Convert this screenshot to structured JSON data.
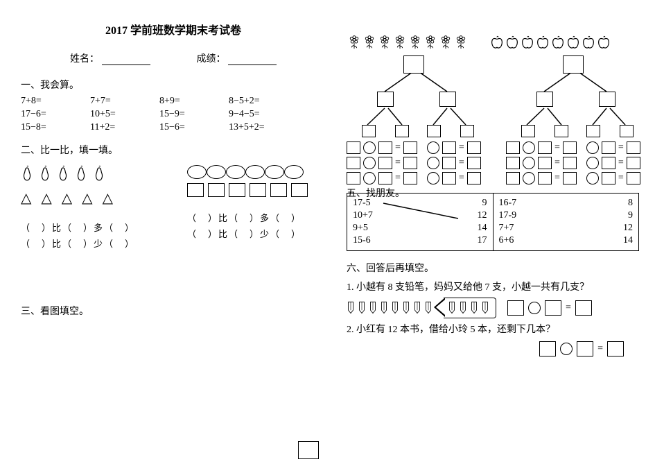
{
  "title": "2017 学前班数学期末考试卷",
  "form": {
    "name_label": "姓名：",
    "score_label": "成绩："
  },
  "sec1": {
    "heading": "一、我会算。",
    "rows": [
      [
        "7+8=",
        "7+7=",
        "8+9=",
        "8−5+2="
      ],
      [
        "17−6=",
        "10+5=",
        "15−9=",
        "9−4−5="
      ],
      [
        "15−8=",
        "11+2=",
        "15−6=",
        "13+5+2="
      ]
    ]
  },
  "sec2": {
    "heading": "二、比一比，填一填。",
    "more_template": "（　）比（　）多（　）",
    "less_template": "（　）比（　）少（　）"
  },
  "sec3": {
    "heading": "三、看图填空。"
  },
  "sec5": {
    "heading": "五、找朋友。",
    "left_pairs": [
      [
        "17-5",
        "9"
      ],
      [
        "10+7",
        "12"
      ],
      [
        "9+5",
        "14"
      ],
      [
        "15-6",
        "17"
      ]
    ],
    "right_pairs": [
      [
        "16-7",
        "8"
      ],
      [
        "17-9",
        "9"
      ],
      [
        "7+7",
        "12"
      ],
      [
        "6+6",
        "14"
      ]
    ]
  },
  "sec6": {
    "heading": "六、回答后再填空。",
    "q1": "1. 小越有 8 支铅笔，妈妈又给他 7 支，小越一共有几支？",
    "q2": "2. 小红有 12 本书，借给小玲 5 本，还剩下几本？"
  },
  "counts": {
    "flowers": 8,
    "apples": 8,
    "pears": 5,
    "triangles": 5,
    "ovals": 6,
    "squares": 6,
    "pencils_a": 8,
    "pencils_b": 4
  },
  "eq": "="
}
